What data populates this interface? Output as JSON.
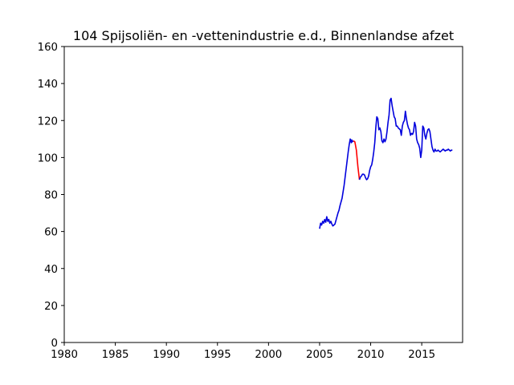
{
  "chart_data": {
    "type": "line",
    "title": "104 Spijsoliën- en -vettenindustrie e.d., Binnenlandse afzet",
    "xlabel": "",
    "ylabel": "",
    "xlim": [
      1980,
      2019
    ],
    "ylim": [
      0,
      160
    ],
    "xticks": [
      1980,
      1985,
      1990,
      1995,
      2000,
      2005,
      2010,
      2015
    ],
    "yticks": [
      0,
      20,
      40,
      60,
      80,
      100,
      120,
      140,
      160
    ],
    "grid": false,
    "legend": "none",
    "series": [
      {
        "color": "#0000dd",
        "x": [
          2005.0,
          2005.1,
          2005.2,
          2005.3,
          2005.4,
          2005.5,
          2005.6,
          2005.7,
          2005.8,
          2005.9,
          2006.0,
          2006.1,
          2006.2,
          2006.3,
          2006.4,
          2006.5,
          2006.6,
          2006.7,
          2006.8,
          2006.9,
          2007.0,
          2007.2,
          2007.4,
          2007.6,
          2007.8,
          2007.9,
          2008.0,
          2008.1,
          2008.15,
          2008.2,
          2008.3
        ],
        "y": [
          61.5,
          64.5,
          63.5,
          65.5,
          64.5,
          66.5,
          65.0,
          68.0,
          65.5,
          66.5,
          64.5,
          65.5,
          64.0,
          63.0,
          63.5,
          64.0,
          66.0,
          68.0,
          70.0,
          71.5,
          74.0,
          78.0,
          85.0,
          94.0,
          103.0,
          107.0,
          110.0,
          108.0,
          109.5,
          108.5,
          109.0
        ]
      },
      {
        "color": "#ff0000",
        "x": [
          2008.3,
          2008.45,
          2008.6,
          2008.75,
          2008.9
        ],
        "y": [
          109.0,
          108.5,
          104.0,
          95.0,
          88.0
        ]
      },
      {
        "color": "#0000dd",
        "x": [
          2008.9,
          2009.0,
          2009.1,
          2009.2,
          2009.3,
          2009.4,
          2009.5,
          2009.6,
          2009.7,
          2009.8,
          2009.9,
          2010.0,
          2010.1,
          2010.2,
          2010.3,
          2010.4,
          2010.5,
          2010.6,
          2010.7,
          2010.8,
          2010.9,
          2011.0,
          2011.1,
          2011.2,
          2011.3,
          2011.4,
          2011.5,
          2011.6,
          2011.7,
          2011.8,
          2011.9,
          2012.0,
          2012.1,
          2012.2,
          2012.3,
          2012.4,
          2012.5,
          2012.6,
          2012.7,
          2012.8,
          2012.9,
          2013.0,
          2013.1,
          2013.2,
          2013.3,
          2013.4,
          2013.5,
          2013.6,
          2013.7,
          2013.8,
          2013.9,
          2014.0,
          2014.1,
          2014.2,
          2014.3,
          2014.4,
          2014.5,
          2014.6,
          2014.7,
          2014.8,
          2014.9,
          2015.0,
          2015.1,
          2015.2,
          2015.3,
          2015.4,
          2015.5,
          2015.6,
          2015.7,
          2015.8,
          2015.9,
          2016.0,
          2016.1,
          2016.2,
          2016.3,
          2016.4,
          2016.5,
          2016.6,
          2016.7,
          2016.8,
          2016.9,
          2017.0,
          2017.1,
          2017.2,
          2017.3,
          2017.4,
          2017.5,
          2017.6,
          2017.7,
          2017.8,
          2017.9,
          2018.0
        ],
        "y": [
          88.0,
          89.5,
          90.0,
          91.0,
          91.0,
          90.5,
          89.0,
          88.0,
          88.5,
          90.0,
          93.0,
          95.0,
          96.0,
          99.0,
          103.0,
          108.0,
          116.0,
          122.0,
          121.0,
          115.0,
          116.0,
          114.0,
          109.0,
          108.0,
          110.0,
          108.5,
          110.0,
          114.0,
          119.0,
          123.0,
          131.0,
          132.0,
          128.0,
          125.0,
          122.0,
          121.0,
          117.0,
          117.0,
          116.0,
          115.5,
          115.0,
          112.0,
          117.0,
          119.0,
          120.0,
          125.0,
          121.0,
          118.0,
          116.0,
          115.0,
          112.0,
          113.0,
          112.5,
          114.0,
          119.0,
          117.0,
          110.0,
          108.0,
          107.0,
          105.0,
          100.0,
          104.0,
          117.0,
          116.0,
          112.0,
          110.0,
          113.0,
          115.0,
          115.5,
          114.0,
          110.0,
          106.0,
          104.0,
          103.0,
          104.5,
          103.5,
          103.5,
          104.0,
          103.5,
          103.0,
          103.5,
          104.0,
          104.5,
          104.0,
          103.5,
          104.0,
          104.0,
          104.5,
          104.0,
          103.5,
          104.0,
          104.0
        ]
      }
    ]
  }
}
